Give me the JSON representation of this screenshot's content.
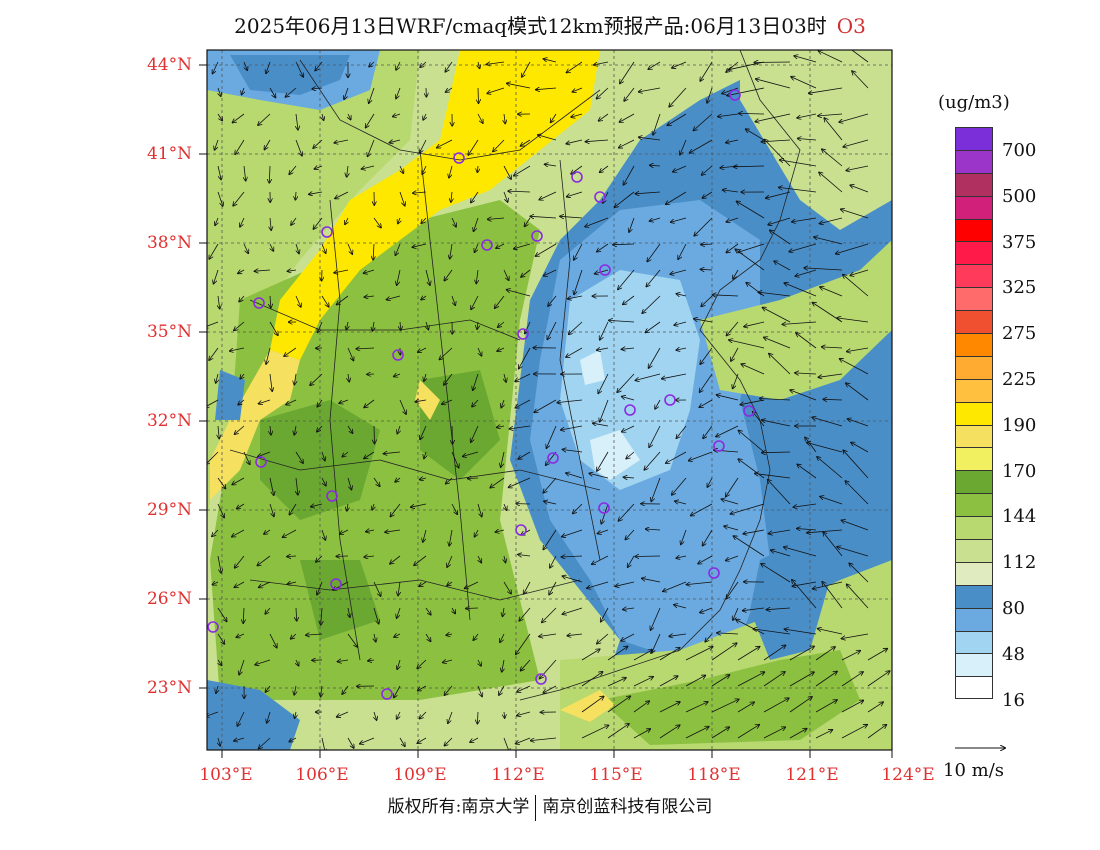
{
  "title": {
    "text": "2025年06月13日WRF/cmaq模式12km预报产品:06月13日03时",
    "pollutant": "O3"
  },
  "map": {
    "lon_labels": [
      "103°E",
      "106°E",
      "109°E",
      "112°E",
      "115°E",
      "118°E",
      "121°E",
      "124°E"
    ],
    "lat_labels": [
      "44°N",
      "41°N",
      "38°N",
      "35°N",
      "32°N",
      "29°N",
      "26°N",
      "23°N"
    ],
    "extent": {
      "lon": [
        103,
        124
      ],
      "lat": [
        21,
        44.5
      ]
    }
  },
  "colorbar": {
    "unit": "(ug/m3)",
    "colors": [
      "#7b2fd8",
      "#9b35c9",
      "#b0305f",
      "#d0207a",
      "#ff0000",
      "#ff1a4a",
      "#ff3a5a",
      "#ff6a6a",
      "#f05030",
      "#ff8800",
      "#ffaa30",
      "#ffc040",
      "#ffe800",
      "#f5e060",
      "#f0f060",
      "#6aa832",
      "#8cc040",
      "#b8d870",
      "#c8e090",
      "#e0ecc0",
      "#4a8ec8",
      "#6aaae0",
      "#a0d4f0",
      "#d8f0fa",
      "#ffffff"
    ],
    "labels": [
      "700",
      "500",
      "375",
      "325",
      "275",
      "225",
      "190",
      "170",
      "144",
      "112",
      "80",
      "48",
      "16"
    ]
  },
  "wind_reference": "10 m/s",
  "footer": {
    "left": "版权所有:南京大学",
    "right": "南京创蓝科技有限公司"
  }
}
